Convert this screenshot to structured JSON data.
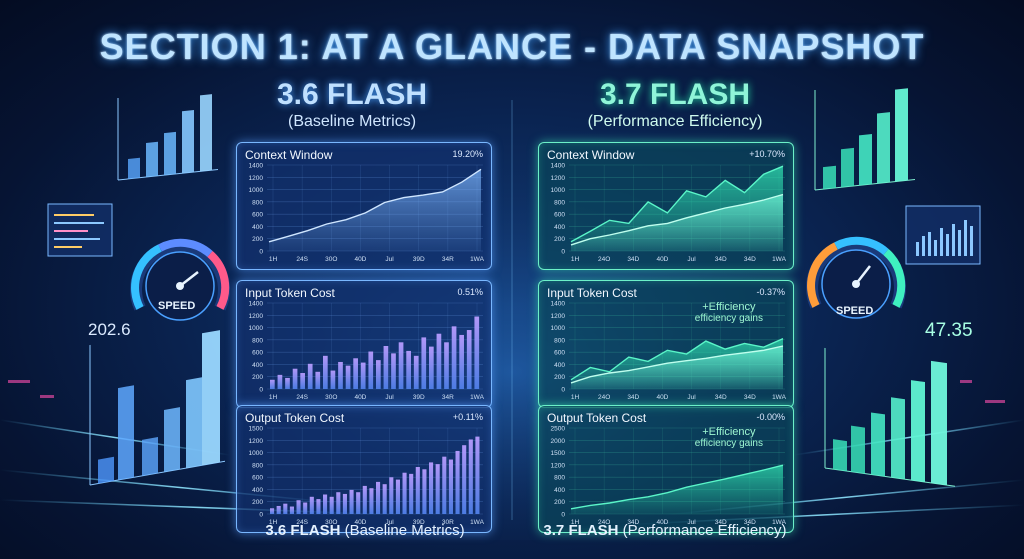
{
  "title": "SECTION 1: AT A GLANCE - DATA SNAPSHOT",
  "left_header": {
    "name": "3.6 FLASH",
    "sub": "(Baseline Metrics)"
  },
  "right_header": {
    "name": "3.7 FLASH",
    "sub": "(Performance Efficiency)"
  },
  "footer_left": {
    "bold": "3.6 FLASH",
    "rest": "(Baseline Metrics)"
  },
  "footer_right": {
    "bold": "3.7 FLASH",
    "rest": "(Performance Efficiency)"
  },
  "side_left_value": "202.6",
  "side_right_value": "47.35",
  "speed_label": "SPEED",
  "colors": {
    "blue_accent": "#6fb3ff",
    "teal_accent": "#3ff0c0",
    "title_glow": "#3ea0ff"
  },
  "chart_data": [
    {
      "id": "l1",
      "type": "area",
      "title": "Context Window",
      "change": "19.20%",
      "ylim": [
        0,
        1400
      ],
      "yticks": [
        "1400",
        "1200",
        "1000",
        "800",
        "600",
        "400",
        "200",
        "0"
      ],
      "xticks": [
        "1H",
        "24S",
        "30O",
        "40D",
        "Jul",
        "39D",
        "34R",
        "1WA"
      ],
      "series": [
        {
          "values": [
            150,
            240,
            330,
            440,
            510,
            620,
            790,
            870,
            910,
            960,
            1120,
            1330
          ]
        }
      ]
    },
    {
      "id": "l2",
      "type": "bar",
      "title": "Input Token Cost",
      "change": "0.51%",
      "ylim": [
        0,
        1400
      ],
      "yticks": [
        "1400",
        "1200",
        "1000",
        "800",
        "600",
        "400",
        "200",
        "0"
      ],
      "xticks": [
        "1H",
        "24S",
        "30O",
        "40D",
        "Jul",
        "39D",
        "34R",
        "1WA"
      ],
      "series": [
        {
          "values": [
            150,
            230,
            180,
            330,
            260,
            410,
            280,
            540,
            300,
            440,
            380,
            500,
            430,
            610,
            470,
            700,
            580,
            760,
            620,
            540,
            840,
            690,
            900,
            760,
            1020,
            880,
            960,
            1180
          ]
        }
      ]
    },
    {
      "id": "l3",
      "type": "bar",
      "title": "Output Token Cost",
      "change": "+0.11%",
      "ylim": [
        0,
        1500
      ],
      "yticks": [
        "1500",
        "1200",
        "1000",
        "800",
        "600",
        "400",
        "200",
        "0"
      ],
      "xticks": [
        "1H",
        "24S",
        "30O",
        "40D",
        "Jul",
        "39D",
        "30R",
        "1WA"
      ],
      "series": [
        {
          "values": [
            100,
            140,
            180,
            130,
            240,
            200,
            300,
            260,
            340,
            300,
            380,
            350,
            420,
            380,
            490,
            450,
            560,
            520,
            640,
            600,
            720,
            700,
            820,
            780,
            900,
            870,
            1000,
            950,
            1100,
            1200,
            1300,
            1350
          ]
        }
      ]
    },
    {
      "id": "r1",
      "type": "area",
      "title": "Context Window",
      "change": "+10.70%",
      "ylim": [
        0,
        1400
      ],
      "yticks": [
        "1400",
        "1200",
        "1000",
        "800",
        "600",
        "400",
        "200",
        "0"
      ],
      "xticks": [
        "1H",
        "24O",
        "34D",
        "40D",
        "Jul",
        "34D",
        "34D",
        "1WA"
      ],
      "series": [
        {
          "values": [
            150,
            320,
            500,
            450,
            800,
            620,
            980,
            880,
            1150,
            950,
            1250,
            1380
          ]
        },
        {
          "values": [
            100,
            200,
            260,
            330,
            410,
            450,
            540,
            620,
            700,
            760,
            830,
            920
          ]
        }
      ]
    },
    {
      "id": "r2",
      "type": "area",
      "title": "Input Token Cost",
      "change": "-0.37%",
      "annotation": [
        "+Efficiency",
        "efficiency gains"
      ],
      "ylim": [
        0,
        1400
      ],
      "yticks": [
        "1400",
        "1200",
        "1000",
        "800",
        "600",
        "400",
        "200",
        "0"
      ],
      "xticks": [
        "1H",
        "24O",
        "34D",
        "40D",
        "Jul",
        "34D",
        "34D",
        "1WA"
      ],
      "series": [
        {
          "values": [
            150,
            350,
            280,
            520,
            450,
            630,
            570,
            780,
            650,
            740,
            680,
            820
          ]
        },
        {
          "values": [
            100,
            200,
            260,
            300,
            360,
            420,
            460,
            500,
            550,
            590,
            630,
            700
          ]
        }
      ]
    },
    {
      "id": "r3",
      "type": "area",
      "title": "Output Token Cost",
      "change": "-0.00%",
      "annotation": [
        "+Efficiency",
        "efficiency gains"
      ],
      "ylim": [
        0,
        2500
      ],
      "yticks": [
        "2500",
        "2000",
        "1500",
        "1200",
        "800",
        "400",
        "200",
        "0"
      ],
      "xticks": [
        "1H",
        "24O",
        "34D",
        "40D",
        "Jul",
        "34D",
        "34D",
        "1WA"
      ],
      "series": [
        {
          "values": [
            150,
            250,
            320,
            420,
            500,
            620,
            780,
            900,
            1020,
            1150,
            1280,
            1420
          ]
        }
      ]
    }
  ]
}
